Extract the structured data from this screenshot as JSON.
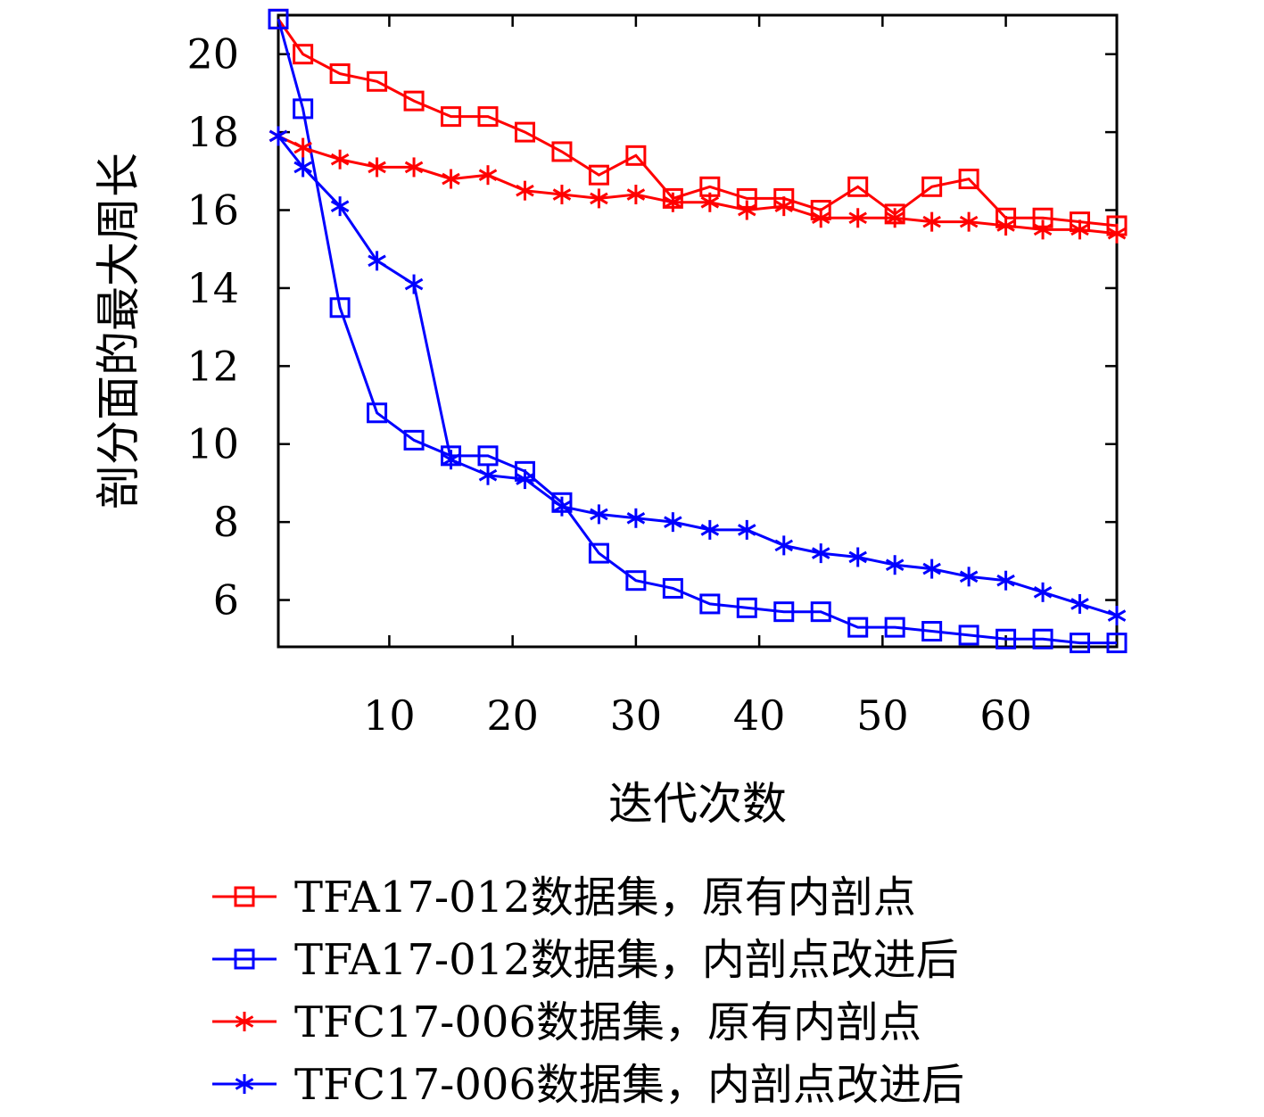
{
  "chart_data": {
    "type": "line",
    "xlabel": "迭代次数",
    "ylabel": "剖分面的最大周长",
    "xlim": [
      1,
      69
    ],
    "ylim": [
      4.8,
      21
    ],
    "xticks": [
      10,
      20,
      30,
      40,
      50,
      60
    ],
    "yticks": [
      6,
      8,
      10,
      12,
      14,
      16,
      18,
      20
    ],
    "grid": false,
    "legend_position": "bottom",
    "series": [
      {
        "name": "TFA17-012数据集，原有内剖点",
        "color": "#ff0000",
        "marker": "square",
        "x": [
          1,
          3,
          6,
          9,
          12,
          15,
          18,
          21,
          24,
          27,
          30,
          33,
          36,
          39,
          42,
          45,
          48,
          51,
          54,
          57,
          60,
          63,
          66,
          69
        ],
        "y": [
          20.9,
          20.0,
          19.5,
          19.3,
          18.8,
          18.4,
          18.4,
          18.0,
          17.5,
          16.9,
          17.4,
          16.3,
          16.6,
          16.3,
          16.3,
          16.0,
          16.6,
          15.9,
          16.6,
          16.8,
          15.8,
          15.8,
          15.7,
          15.6
        ]
      },
      {
        "name": "TFA17-012数据集，内剖点改进后",
        "color": "#0000ff",
        "marker": "square",
        "x": [
          1,
          3,
          6,
          9,
          12,
          15,
          18,
          21,
          24,
          27,
          30,
          33,
          36,
          39,
          42,
          45,
          48,
          51,
          54,
          57,
          60,
          63,
          66,
          69
        ],
        "y": [
          20.9,
          18.6,
          13.5,
          10.8,
          10.1,
          9.7,
          9.7,
          9.3,
          8.5,
          7.2,
          6.5,
          6.3,
          5.9,
          5.8,
          5.7,
          5.7,
          5.3,
          5.3,
          5.2,
          5.1,
          5.0,
          5.0,
          4.9,
          4.9
        ]
      },
      {
        "name": "TFC17-006数据集，原有内剖点",
        "color": "#ff0000",
        "marker": "star",
        "x": [
          1,
          3,
          6,
          9,
          12,
          15,
          18,
          21,
          24,
          27,
          30,
          33,
          36,
          39,
          42,
          45,
          48,
          51,
          54,
          57,
          60,
          63,
          66,
          69
        ],
        "y": [
          17.9,
          17.6,
          17.3,
          17.1,
          17.1,
          16.8,
          16.9,
          16.5,
          16.4,
          16.3,
          16.4,
          16.2,
          16.2,
          16.0,
          16.1,
          15.8,
          15.8,
          15.8,
          15.7,
          15.7,
          15.6,
          15.5,
          15.5,
          15.4
        ]
      },
      {
        "name": "TFC17-006数据集，内剖点改进后",
        "color": "#0000ff",
        "marker": "star",
        "x": [
          1,
          3,
          6,
          9,
          12,
          15,
          18,
          21,
          24,
          27,
          30,
          33,
          36,
          39,
          42,
          45,
          48,
          51,
          54,
          57,
          60,
          63,
          66,
          69
        ],
        "y": [
          17.9,
          17.1,
          16.1,
          14.7,
          14.1,
          9.6,
          9.2,
          9.1,
          8.4,
          8.2,
          8.1,
          8.0,
          7.8,
          7.8,
          7.4,
          7.2,
          7.1,
          6.9,
          6.8,
          6.6,
          6.5,
          6.2,
          5.9,
          5.6
        ]
      }
    ]
  }
}
